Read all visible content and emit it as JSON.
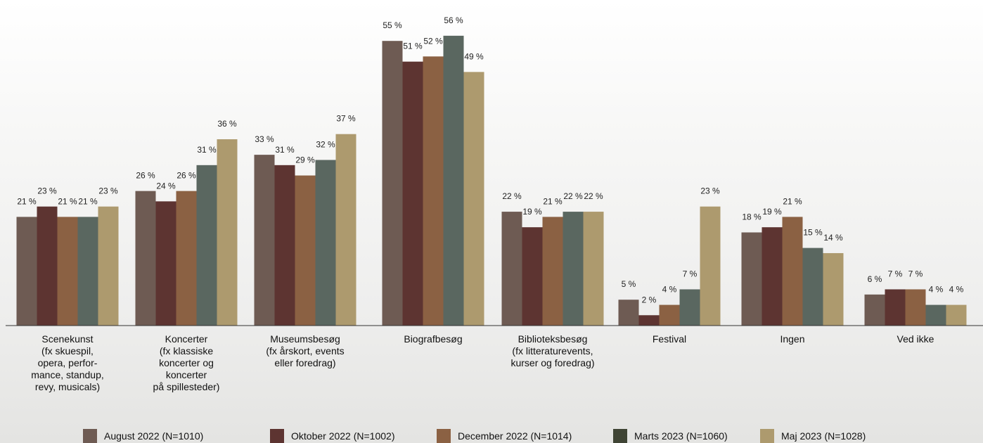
{
  "chart_data": {
    "type": "bar",
    "categories": [
      "Scenekunst\n(fx skuespil,\nopera, perfor-\nmance, standup,\nrevy, musicals)",
      "Koncerter\n(fx klassiske\nkoncerter og\nkoncerter\npå spillesteder)",
      "Museumsbesøg\n(fx årskort, events\neller foredrag)",
      "Biografbesøg",
      "Biblioteksbesøg\n(fx litteraturevents,\nkurser og foredrag)",
      "Festival",
      "Ingen",
      "Ved ikke"
    ],
    "series": [
      {
        "name": "August 2022 (N=1010)",
        "color": "#6e5b53",
        "values": [
          21,
          26,
          33,
          55,
          22,
          5,
          18,
          6
        ],
        "labels": [
          "21 %",
          "26 %",
          "33 %",
          "55 %",
          "22 %",
          "5 %",
          "18 %",
          "6 %"
        ]
      },
      {
        "name": "Oktober 2022 (N=1002)",
        "color": "#5d3431",
        "values": [
          23,
          24,
          31,
          51,
          19,
          2,
          19,
          7
        ],
        "labels": [
          "23 %",
          "24 %",
          "31 %",
          "51 %",
          "19 %",
          "2 %",
          "19 %",
          "7 %"
        ]
      },
      {
        "name": "December 2022 (N=1014)",
        "color": "#8b6143",
        "values": [
          21,
          26,
          29,
          52,
          21,
          4,
          21,
          7
        ],
        "labels": [
          "21 %",
          "26 %",
          "29 %",
          "52 %",
          "21 %",
          "4 %",
          "21 %",
          "7 %"
        ]
      },
      {
        "name": "Marts 2023 (N=1060)",
        "color": "#5a6760",
        "legend_color": "#3f4434",
        "values": [
          21,
          31,
          32,
          56,
          22,
          7,
          15,
          4
        ],
        "labels": [
          "21 %",
          "31 %",
          "32 %",
          "56 %",
          "22 %",
          "7 %",
          "15 %",
          "4 %"
        ]
      },
      {
        "name": "Maj 2023 (N=1028)",
        "color": "#ad9a6e",
        "values": [
          23,
          36,
          37,
          49,
          22,
          23,
          14,
          4
        ],
        "labels": [
          "23 %",
          "36 %",
          "37 %",
          "49 %",
          "22 %",
          "23 %",
          "14 %",
          "4 %"
        ]
      }
    ],
    "ylim": [
      0,
      58
    ],
    "grid": false,
    "legend_position": "bottom"
  }
}
